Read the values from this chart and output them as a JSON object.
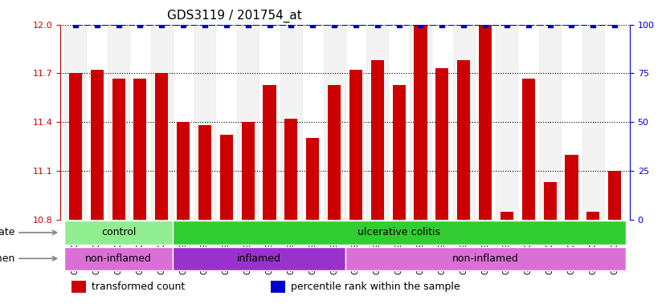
{
  "title": "GDS3119 / 201754_at",
  "samples": [
    "GSM240023",
    "GSM240024",
    "GSM240025",
    "GSM240026",
    "GSM240027",
    "GSM239617",
    "GSM239618",
    "GSM239714",
    "GSM239716",
    "GSM239717",
    "GSM239718",
    "GSM239719",
    "GSM239720",
    "GSM239723",
    "GSM239725",
    "GSM239726",
    "GSM239727",
    "GSM239729",
    "GSM239730",
    "GSM239731",
    "GSM239732",
    "GSM240022",
    "GSM240028",
    "GSM240029",
    "GSM240030",
    "GSM240031"
  ],
  "transformed_count": [
    11.7,
    11.72,
    11.67,
    11.67,
    11.7,
    11.4,
    11.38,
    11.32,
    11.4,
    11.63,
    11.42,
    11.3,
    11.63,
    11.72,
    11.78,
    11.63,
    12.0,
    11.73,
    11.78,
    12.0,
    10.85,
    11.67,
    11.03,
    11.2,
    10.85,
    11.1
  ],
  "percentile_rank": [
    100,
    100,
    100,
    100,
    100,
    100,
    100,
    100,
    100,
    100,
    100,
    100,
    100,
    100,
    100,
    100,
    100,
    100,
    100,
    100,
    100,
    100,
    100,
    100,
    100,
    100
  ],
  "ylim_left": [
    10.8,
    12.0
  ],
  "ylim_right": [
    0,
    100
  ],
  "yticks_left": [
    10.8,
    11.1,
    11.4,
    11.7,
    12.0
  ],
  "yticks_right": [
    0,
    25,
    50,
    75,
    100
  ],
  "bar_color": "#cc0000",
  "percentile_color": "#0000cc",
  "background_color": "#ffffff",
  "plot_bg_color": "#ffffff",
  "grid_color": "#000000",
  "disease_state": {
    "groups": [
      {
        "label": "control",
        "start": 0,
        "end": 5,
        "color": "#90ee90"
      },
      {
        "label": "ulcerative colitis",
        "start": 5,
        "end": 26,
        "color": "#32cd32"
      }
    ]
  },
  "specimen": {
    "groups": [
      {
        "label": "non-inflamed",
        "start": 0,
        "end": 5,
        "color": "#da70d6"
      },
      {
        "label": "inflamed",
        "start": 5,
        "end": 13,
        "color": "#9932cc"
      },
      {
        "label": "non-inflamed",
        "start": 13,
        "end": 26,
        "color": "#da70d6"
      }
    ]
  },
  "legend_items": [
    {
      "label": "transformed count",
      "color": "#cc0000",
      "marker": "s"
    },
    {
      "label": "percentile rank within the sample",
      "color": "#0000cc",
      "marker": "s"
    }
  ],
  "title_fontsize": 11,
  "tick_fontsize": 8,
  "label_fontsize": 9
}
